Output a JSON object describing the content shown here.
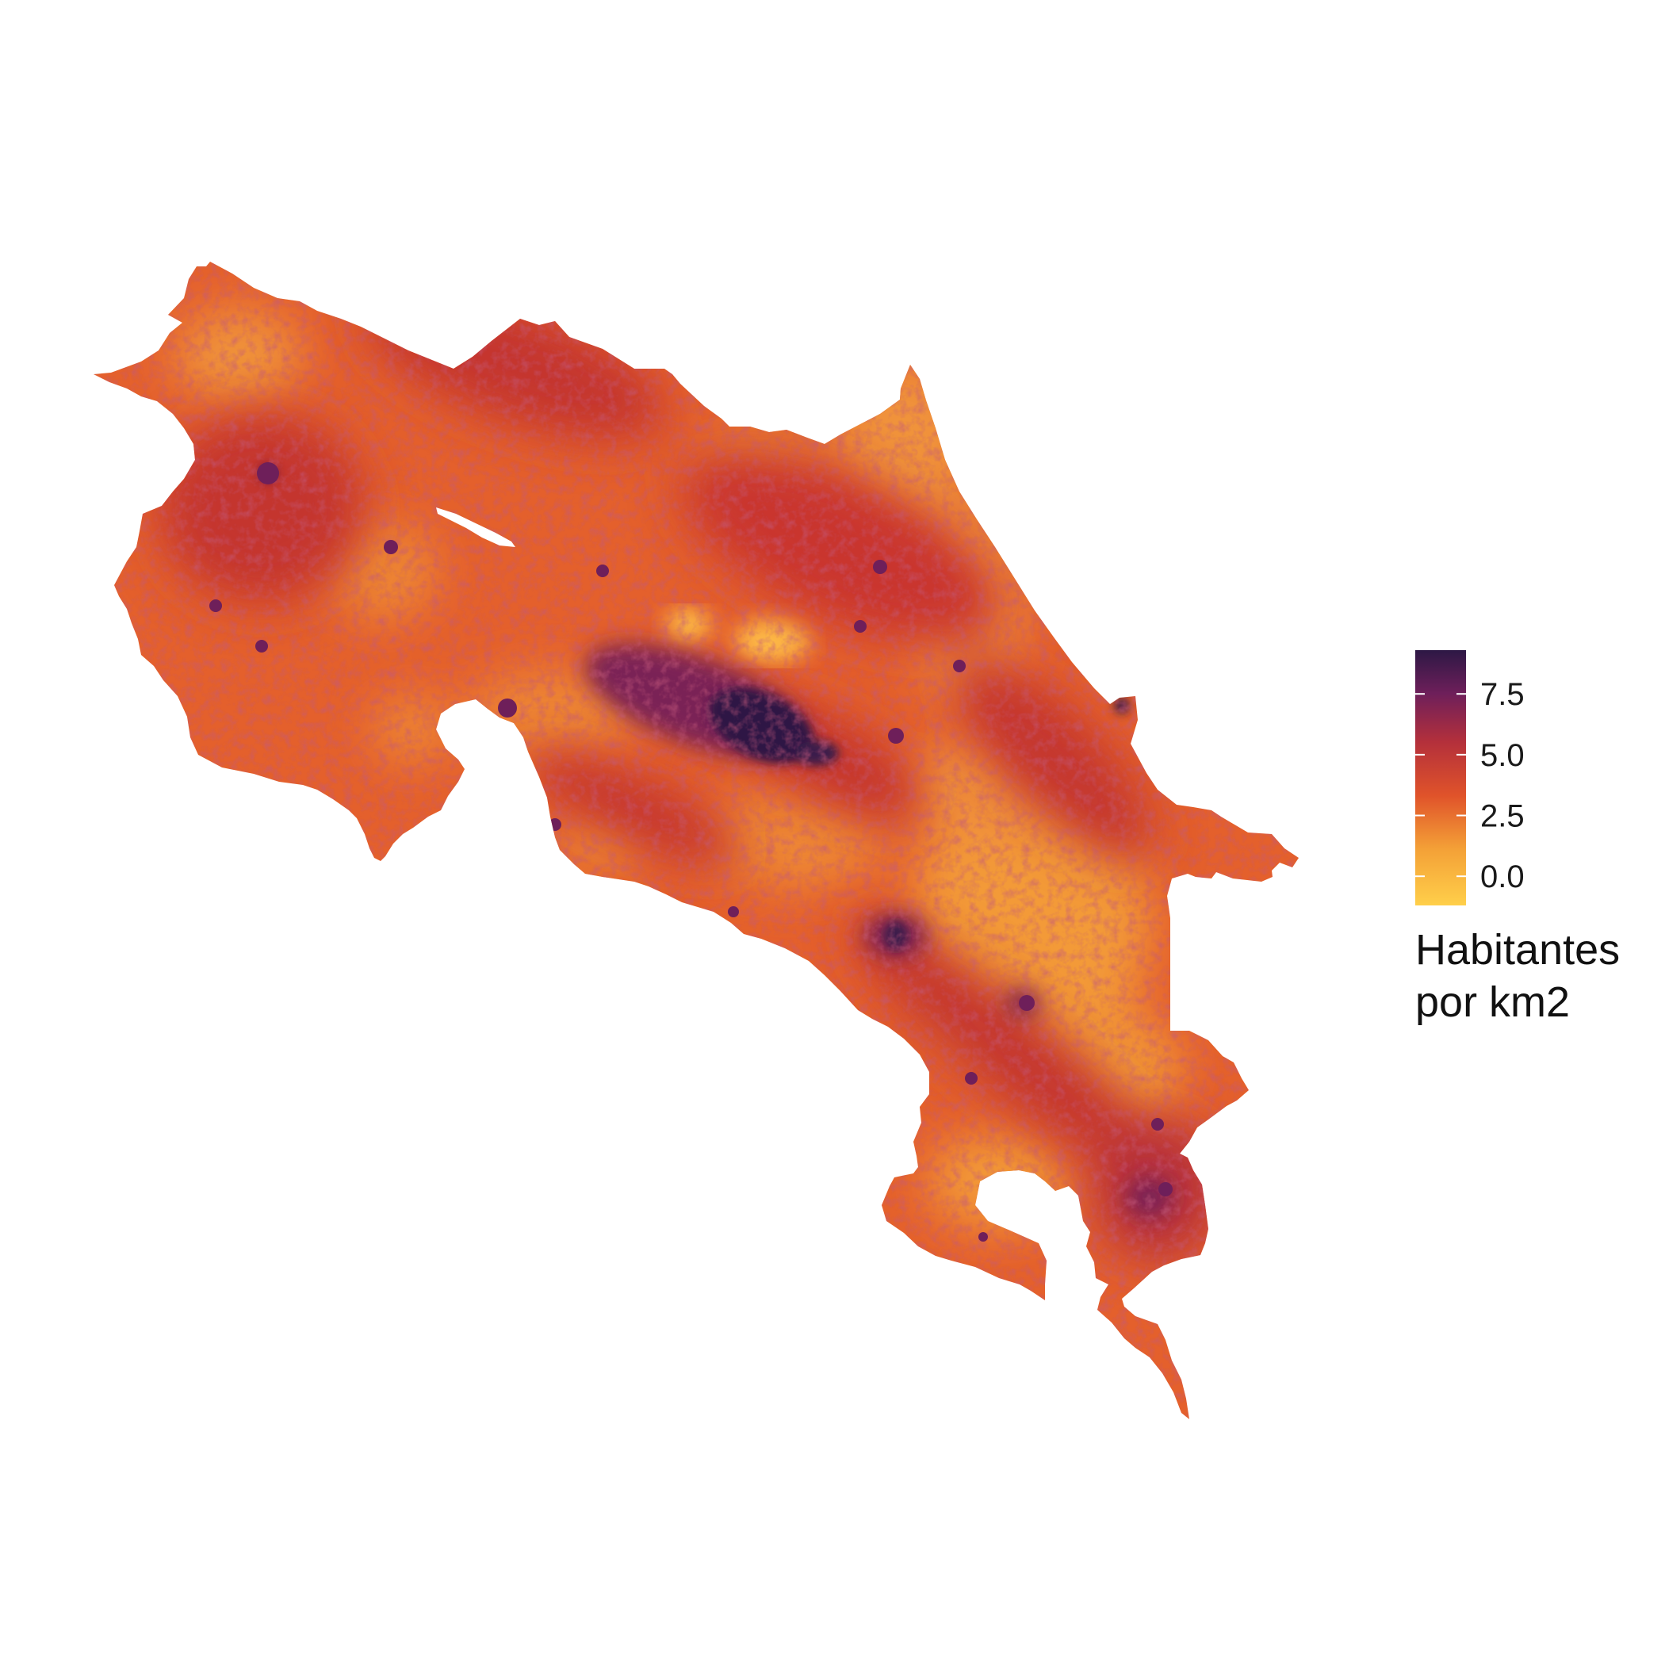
{
  "map": {
    "region": "Costa Rica",
    "fill_palette": [
      "#ffcf4a",
      "#f4a137",
      "#e0532a",
      "#b4303b",
      "#6e1f5a",
      "#2d1845"
    ]
  },
  "legend": {
    "title_line1": "Habitantes",
    "title_line2": "por km2",
    "breaks": [
      {
        "value": 7.5,
        "label": "7.5"
      },
      {
        "value": 5.0,
        "label": "5.0"
      },
      {
        "value": 2.5,
        "label": "2.5"
      },
      {
        "value": 0.0,
        "label": "0.0"
      }
    ],
    "range": [
      -1.2,
      9.3
    ],
    "gradient": [
      "#ffcf4a",
      "#f4a137",
      "#e0532a",
      "#b4303b",
      "#6e1f5a",
      "#2d1845"
    ]
  },
  "chart_data": {
    "type": "heatmap",
    "title": "",
    "legend_title": "Habitantes por km2",
    "legend_placement": "right",
    "scale": {
      "min": -1.2,
      "max": 9.3,
      "breaks": [
        0.0,
        2.5,
        5.0,
        7.5
      ]
    },
    "grid": false
  }
}
